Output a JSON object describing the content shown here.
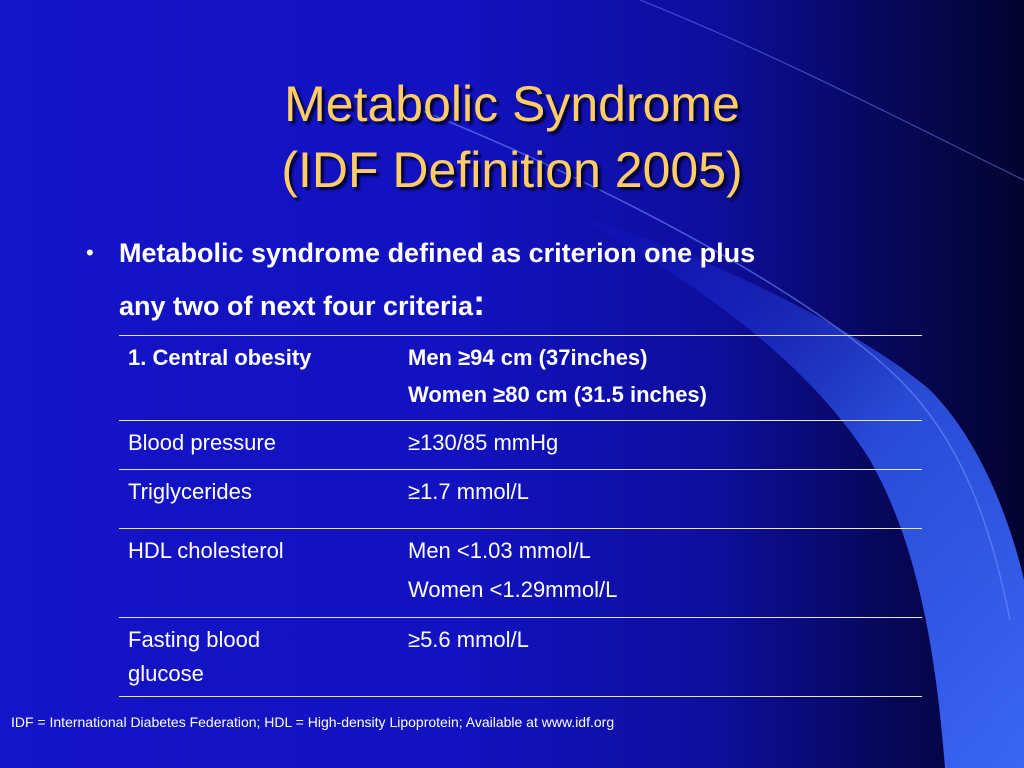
{
  "slide": {
    "title_line1": "Metabolic Syndrome",
    "title_line2": "(IDF Definition 2005)",
    "bullet": {
      "marker": "•",
      "line1": "Metabolic syndrome defined as criterion one plus",
      "line2_text": "any two of next four criteria",
      "line2_colon": ":"
    },
    "table": {
      "rows": [
        {
          "label_lines": [
            "1. Central obesity"
          ],
          "value_lines": [
            "Men ≥94 cm (37inches)",
            "Women ≥80 cm (31.5 inches)"
          ],
          "bold": true
        },
        {
          "label_lines": [
            "Blood pressure"
          ],
          "value_lines": [
            "≥130/85 mmHg"
          ],
          "bold": false
        },
        {
          "label_lines": [
            "Triglycerides"
          ],
          "value_lines": [
            "≥1.7 mmol/L"
          ],
          "bold": false
        },
        {
          "label_lines": [
            "HDL cholesterol"
          ],
          "value_lines": [
            "Men <1.03 mmol/L",
            "Women <1.29mmol/L"
          ],
          "bold": false
        },
        {
          "label_lines": [
            "Fasting blood",
            "glucose"
          ],
          "value_lines": [
            "≥5.6 mmol/L"
          ],
          "bold": false
        }
      ]
    },
    "footnote": "IDF = International Diabetes Federation; HDL = High-density Lipoprotein; Available at www.idf.org",
    "colors": {
      "title": "#ffcc66",
      "background": "#1414c8",
      "text": "#ffffff",
      "decor_wedge": "#3a64f2"
    }
  }
}
